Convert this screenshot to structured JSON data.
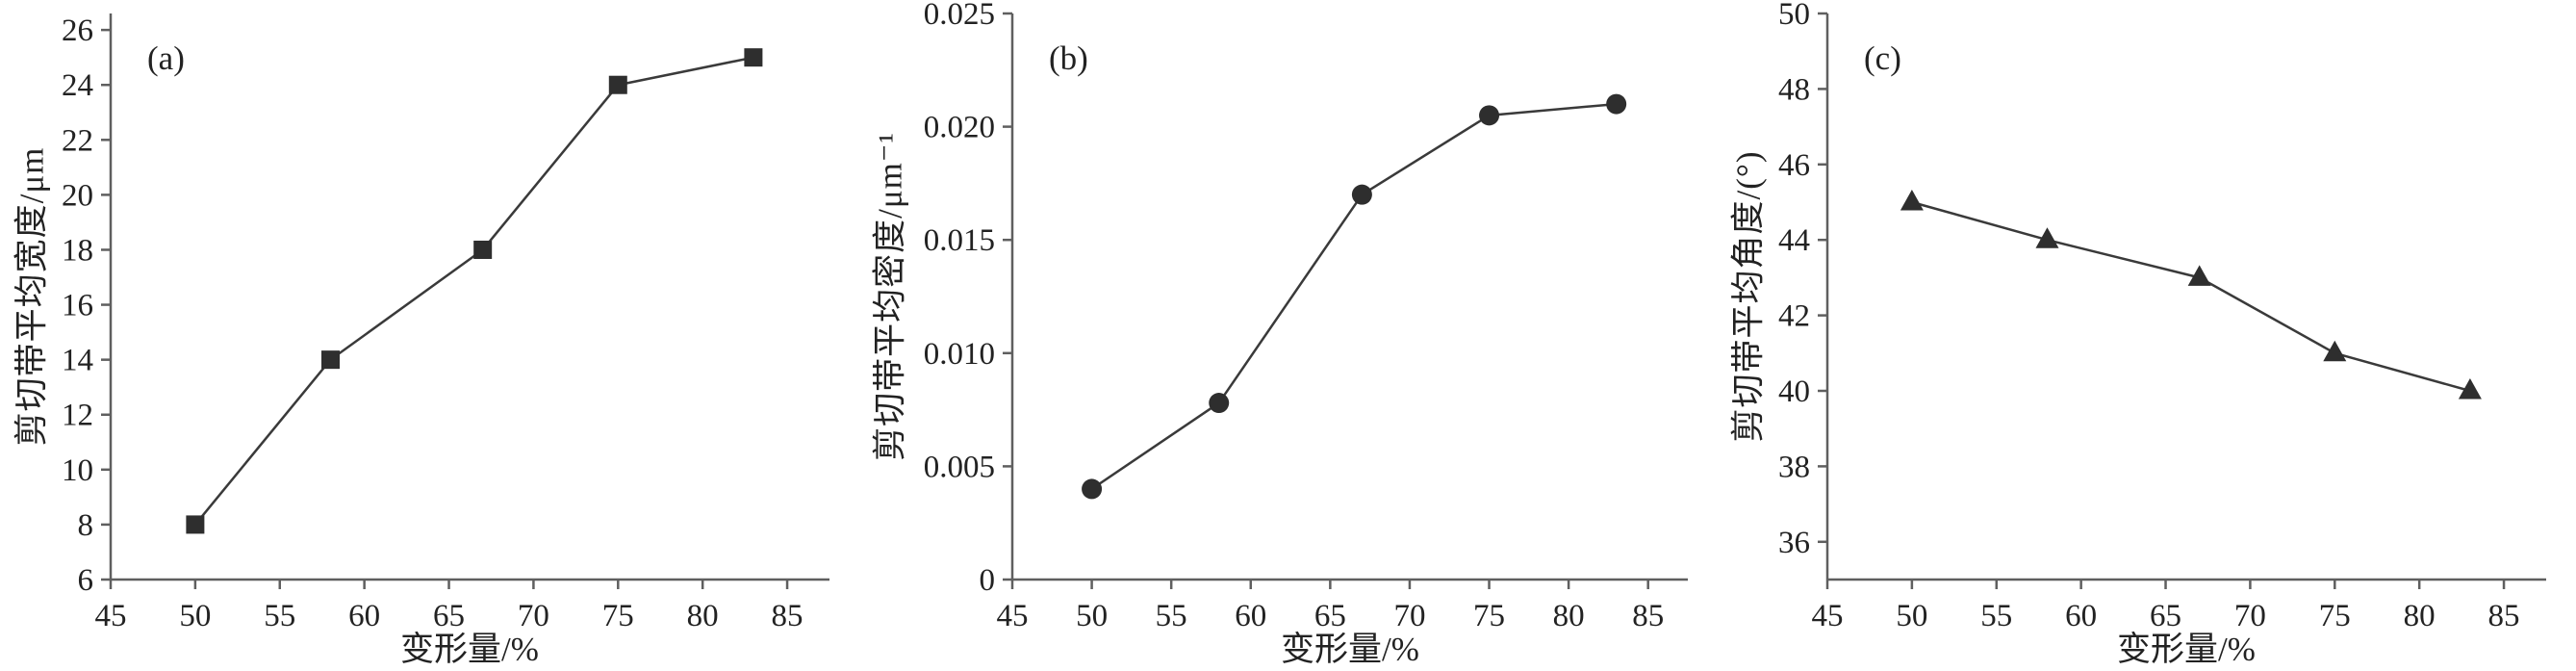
{
  "figure": {
    "background": "#ffffff",
    "text_color": "#222222",
    "axis_color": "#5f5f5f",
    "line_color": "#3a3a3a",
    "marker_color": "#2e2e2e"
  },
  "chart_data": [
    {
      "type": "line",
      "panel_label": "(a)",
      "marker": "square",
      "x": [
        50,
        58,
        67,
        75,
        83
      ],
      "y": [
        8,
        14,
        18,
        24,
        25
      ],
      "xlabel": "变形量/%",
      "ylabel": "剪切带平均宽度/μm",
      "xlim": [
        45,
        87.5
      ],
      "ylim": [
        6,
        26.6
      ],
      "grid": false,
      "legend": "none",
      "xticks": {
        "values": [
          45,
          50,
          55,
          60,
          65,
          70,
          75,
          80,
          85
        ],
        "labels": [
          "45",
          "50",
          "55",
          "60",
          "65",
          "70",
          "75",
          "80",
          "85"
        ]
      },
      "yticks": {
        "values": [
          6,
          8,
          10,
          12,
          14,
          16,
          18,
          20,
          22,
          24,
          26
        ],
        "labels": [
          "6",
          "8",
          "10",
          "12",
          "14",
          "16",
          "18",
          "20",
          "22",
          "24",
          "26"
        ]
      }
    },
    {
      "type": "line",
      "panel_label": "(b)",
      "marker": "circle",
      "x": [
        50,
        58,
        67,
        75,
        83
      ],
      "y": [
        0.004,
        0.0078,
        0.017,
        0.0205,
        0.021
      ],
      "xlabel": "变形量/%",
      "ylabel": "剪切带平均密度/μm⁻¹",
      "xlim": [
        45,
        87.5
      ],
      "ylim": [
        0,
        0.025
      ],
      "grid": false,
      "legend": "none",
      "xticks": {
        "values": [
          45,
          50,
          55,
          60,
          65,
          70,
          75,
          80,
          85
        ],
        "labels": [
          "45",
          "50",
          "55",
          "60",
          "65",
          "70",
          "75",
          "80",
          "85"
        ]
      },
      "yticks": {
        "values": [
          0,
          0.005,
          0.01,
          0.015,
          0.02,
          0.025
        ],
        "labels": [
          "0",
          "0.005",
          "0.010",
          "0.015",
          "0.020",
          "0.025"
        ]
      }
    },
    {
      "type": "line",
      "panel_label": "(c)",
      "marker": "triangle",
      "x": [
        50,
        58,
        67,
        75,
        83
      ],
      "y": [
        45,
        44,
        43,
        41,
        40
      ],
      "xlabel": "变形量/%",
      "ylabel": "剪切带平均角度/(°)",
      "xlim": [
        45,
        87.5
      ],
      "ylim": [
        35,
        50
      ],
      "grid": false,
      "legend": "none",
      "xticks": {
        "values": [
          45,
          50,
          55,
          60,
          65,
          70,
          75,
          80,
          85
        ],
        "labels": [
          "45",
          "50",
          "55",
          "60",
          "65",
          "70",
          "75",
          "80",
          "85"
        ]
      },
      "yticks": {
        "values": [
          36,
          38,
          40,
          42,
          44,
          46,
          48,
          50
        ],
        "labels": [
          "36",
          "38",
          "40",
          "42",
          "44",
          "46",
          "48",
          "50"
        ]
      }
    }
  ]
}
